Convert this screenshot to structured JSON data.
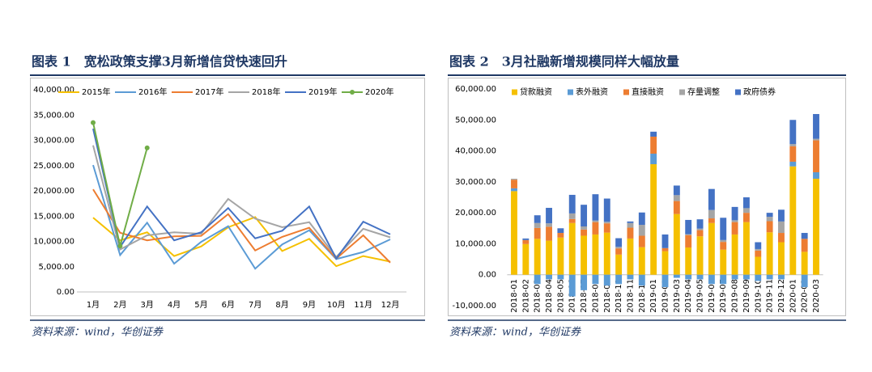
{
  "chart_data": [
    {
      "type": "line",
      "title": "图表 1　宽松政策支撑3月新增信贷快速回升",
      "source": "资料来源：wind，华创证券",
      "categories": [
        "1月",
        "2月",
        "3月",
        "4月",
        "5月",
        "6月",
        "7月",
        "8月",
        "9月",
        "10月",
        "11月",
        "12月"
      ],
      "series": [
        {
          "name": "2015年",
          "color": "#F5C000",
          "values": [
            14700,
            10200,
            11800,
            7100,
            9000,
            12800,
            14800,
            8100,
            10500,
            5100,
            7100,
            6000
          ]
        },
        {
          "name": "2016年",
          "color": "#5B9BD5",
          "values": [
            25100,
            7300,
            13700,
            5600,
            9900,
            13000,
            4600,
            9400,
            12200,
            6500,
            7900,
            10400
          ]
        },
        {
          "name": "2017年",
          "color": "#ED7D31",
          "values": [
            20300,
            11700,
            10200,
            11000,
            11100,
            15400,
            8200,
            10900,
            12700,
            6600,
            11200,
            5800
          ]
        },
        {
          "name": "2018年",
          "color": "#A5A5A5",
          "values": [
            29000,
            8400,
            11200,
            11800,
            11500,
            18400,
            14500,
            12800,
            13800,
            6900,
            12500,
            10800
          ]
        },
        {
          "name": "2019年",
          "color": "#4472C4",
          "values": [
            32300,
            8900,
            16900,
            10200,
            11800,
            16600,
            10600,
            12100,
            16900,
            6600,
            13900,
            11400
          ]
        },
        {
          "name": "2020年",
          "color": "#70AD47",
          "markers": true,
          "values": [
            33500,
            9100,
            28500,
            null,
            null,
            null,
            null,
            null,
            null,
            null,
            null,
            null
          ]
        }
      ],
      "ylim": [
        0,
        40000
      ],
      "yticks": [
        {
          "value": 0,
          "label": "0.00"
        },
        {
          "value": 5000,
          "label": "5,000.00"
        },
        {
          "value": 10000,
          "label": "10,000.00"
        },
        {
          "value": 15000,
          "label": "15,000.00"
        },
        {
          "value": 20000,
          "label": "20,000.00"
        },
        {
          "value": 25000,
          "label": "25,000.00"
        },
        {
          "value": 30000,
          "label": "30,000.00"
        },
        {
          "value": 35000,
          "label": "35,000.00"
        },
        {
          "value": 40000,
          "label": "40,000.00"
        }
      ],
      "grid": false
    },
    {
      "type": "stacked_bar",
      "title": "图表 2　3月社融新增规模同样大幅放量",
      "source": "资料来源：wind，华创证券",
      "categories": [
        "2018-01",
        "2018-02",
        "2018-03",
        "2018-04",
        "2018-05",
        "2018-06",
        "2018-07",
        "2018-08",
        "2018-09",
        "2018-10",
        "2018-11",
        "2018-12",
        "2019-01",
        "2019-02",
        "2019-03",
        "2019-04",
        "2019-05",
        "2019-06",
        "2019-07",
        "2019-08",
        "2019-09",
        "2019-10",
        "2019-11",
        "2019-12",
        "2020-01",
        "2020-02",
        "2020-03"
      ],
      "series": [
        {
          "name": "贷款融资",
          "color": "#F5C000",
          "values": [
            27000,
            9900,
            11600,
            11000,
            12000,
            16700,
            12600,
            13000,
            13600,
            6500,
            11700,
            8900,
            35700,
            7600,
            19600,
            8800,
            12400,
            16700,
            8100,
            13000,
            17000,
            5800,
            13700,
            10500,
            35000,
            7400,
            31000
          ]
        },
        {
          "name": "表外融资",
          "color": "#5B9BD5",
          "values": [
            900,
            0,
            -3000,
            -1500,
            -1500,
            -7000,
            -5000,
            -3000,
            -3500,
            -3000,
            -1500,
            -3500,
            3400,
            -4000,
            -1000,
            -1500,
            -1500,
            -3000,
            -3000,
            -1500,
            -1500,
            -2000,
            -1500,
            -1500,
            1500,
            -4000,
            2100
          ]
        },
        {
          "name": "直接融资",
          "color": "#ED7D31",
          "values": [
            2800,
            1300,
            3500,
            4500,
            1500,
            1300,
            2000,
            4000,
            3000,
            2000,
            3500,
            3700,
            5500,
            1000,
            4200,
            4000,
            2000,
            1500,
            2500,
            4000,
            3000,
            2000,
            3600,
            3000,
            5000,
            4200,
            10300
          ]
        },
        {
          "name": "存量调整",
          "color": "#A5A5A5",
          "values": [
            300,
            0,
            1600,
            1100,
            0,
            1800,
            1000,
            500,
            500,
            500,
            1500,
            3500,
            0,
            0,
            1900,
            300,
            500,
            2700,
            600,
            600,
            1500,
            500,
            1400,
            3700,
            700,
            0,
            500
          ]
        },
        {
          "name": "政府债券",
          "color": "#4472C4",
          "values": [
            0,
            500,
            2500,
            5000,
            1500,
            6000,
            7000,
            8500,
            7500,
            2800,
            500,
            4000,
            1600,
            4400,
            3100,
            4600,
            3000,
            6800,
            7200,
            4300,
            3500,
            2200,
            1300,
            3800,
            7800,
            1900,
            8000
          ]
        }
      ],
      "ylim": [
        -10000,
        60000
      ],
      "yticks": [
        {
          "value": -10000,
          "label": "-10,000.00"
        },
        {
          "value": 0,
          "label": "0.00"
        },
        {
          "value": 10000,
          "label": "10,000.00"
        },
        {
          "value": 20000,
          "label": "20,000.00"
        },
        {
          "value": 30000,
          "label": "30,000.00"
        },
        {
          "value": 40000,
          "label": "40,000.00"
        },
        {
          "value": 50000,
          "label": "50,000.00"
        },
        {
          "value": 60000,
          "label": "60,000.00"
        }
      ],
      "grid": false
    }
  ]
}
